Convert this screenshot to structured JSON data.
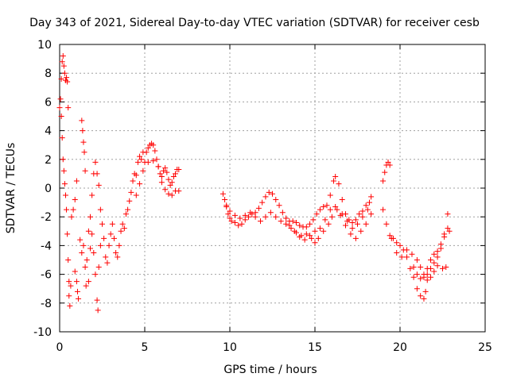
{
  "chart_data": {
    "type": "scatter",
    "title": "Day 343 of 2021, Sidereal Day-to-day VTEC variation (SDTVAR) for receiver cesb",
    "xlabel": "GPS time / hours",
    "ylabel": "SDTVAR / TECUs",
    "xlim": [
      0,
      25
    ],
    "ylim": [
      -10,
      10
    ],
    "xticks": [
      0,
      5,
      10,
      15,
      20,
      25
    ],
    "yticks": [
      -10,
      -8,
      -6,
      -4,
      -2,
      0,
      2,
      4,
      6,
      8,
      10
    ],
    "grid": true,
    "marker": "+",
    "series": [
      {
        "name": "SDTVAR",
        "color": "#ff0000",
        "points": [
          [
            0.0,
            5.6
          ],
          [
            0.05,
            6.2
          ],
          [
            0.1,
            7.6
          ],
          [
            0.15,
            8.8
          ],
          [
            0.2,
            9.2
          ],
          [
            0.25,
            8.5
          ],
          [
            0.3,
            8.0
          ],
          [
            0.35,
            7.5
          ],
          [
            0.4,
            7.7
          ],
          [
            0.45,
            7.4
          ],
          [
            0.5,
            5.6
          ],
          [
            0.1,
            5.0
          ],
          [
            0.15,
            3.5
          ],
          [
            0.2,
            2.0
          ],
          [
            0.25,
            1.2
          ],
          [
            0.3,
            0.3
          ],
          [
            0.35,
            -0.5
          ],
          [
            0.4,
            -1.5
          ],
          [
            0.45,
            -3.2
          ],
          [
            0.5,
            -5.0
          ],
          [
            0.55,
            -6.5
          ],
          [
            0.6,
            -8.2
          ],
          [
            0.55,
            -7.5
          ],
          [
            0.65,
            -6.8
          ],
          [
            0.7,
            -2.0
          ],
          [
            0.8,
            -1.5
          ],
          [
            0.9,
            -0.8
          ],
          [
            1.0,
            0.5
          ],
          [
            0.9,
            -5.8
          ],
          [
            1.0,
            -6.5
          ],
          [
            1.05,
            -7.2
          ],
          [
            1.1,
            -7.7
          ],
          [
            1.3,
            4.7
          ],
          [
            1.35,
            4.0
          ],
          [
            1.4,
            3.2
          ],
          [
            1.45,
            2.5
          ],
          [
            1.5,
            1.2
          ],
          [
            1.2,
            -3.6
          ],
          [
            1.3,
            -4.5
          ],
          [
            1.4,
            -4.0
          ],
          [
            1.5,
            -5.5
          ],
          [
            1.55,
            -6.8
          ],
          [
            1.6,
            -5.0
          ],
          [
            1.7,
            -3.0
          ],
          [
            1.8,
            -2.0
          ],
          [
            1.9,
            -0.5
          ],
          [
            2.0,
            1.0
          ],
          [
            2.1,
            1.8
          ],
          [
            2.2,
            1.0
          ],
          [
            2.3,
            0.2
          ],
          [
            2.4,
            -1.5
          ],
          [
            1.7,
            -6.5
          ],
          [
            1.8,
            -4.2
          ],
          [
            1.9,
            -3.2
          ],
          [
            2.0,
            -4.5
          ],
          [
            2.1,
            -6.0
          ],
          [
            2.2,
            -7.8
          ],
          [
            2.25,
            -8.5
          ],
          [
            2.3,
            -5.5
          ],
          [
            2.4,
            -4.0
          ],
          [
            2.5,
            -2.5
          ],
          [
            2.6,
            -3.5
          ],
          [
            2.7,
            -4.8
          ],
          [
            2.8,
            -5.2
          ],
          [
            2.9,
            -4.0
          ],
          [
            3.0,
            -3.2
          ],
          [
            3.1,
            -2.5
          ],
          [
            3.2,
            -3.5
          ],
          [
            3.3,
            -4.5
          ],
          [
            3.4,
            -4.8
          ],
          [
            3.5,
            -4.0
          ],
          [
            3.6,
            -3.0
          ],
          [
            3.7,
            -2.5
          ],
          [
            3.8,
            -2.8
          ],
          [
            3.9,
            -1.8
          ],
          [
            4.0,
            -1.5
          ],
          [
            4.1,
            -0.9
          ],
          [
            4.2,
            -0.3
          ],
          [
            4.3,
            0.5
          ],
          [
            4.4,
            1.0
          ],
          [
            4.5,
            0.9
          ],
          [
            4.6,
            1.8
          ],
          [
            4.7,
            2.2
          ],
          [
            4.8,
            2.0
          ],
          [
            4.9,
            2.5
          ],
          [
            5.0,
            1.8
          ],
          [
            5.1,
            2.5
          ],
          [
            5.2,
            2.8
          ],
          [
            5.3,
            3.0
          ],
          [
            5.4,
            3.1
          ],
          [
            5.5,
            3.0
          ],
          [
            5.6,
            2.6
          ],
          [
            5.7,
            2.0
          ],
          [
            5.8,
            1.5
          ],
          [
            5.9,
            1.0
          ],
          [
            6.0,
            0.8
          ],
          [
            6.1,
            1.2
          ],
          [
            6.2,
            1.4
          ],
          [
            6.3,
            1.1
          ],
          [
            6.4,
            0.6
          ],
          [
            6.5,
            0.2
          ],
          [
            6.6,
            0.4
          ],
          [
            6.7,
            0.8
          ],
          [
            6.8,
            1.0
          ],
          [
            6.9,
            1.3
          ],
          [
            7.0,
            1.3
          ],
          [
            4.5,
            -0.5
          ],
          [
            4.7,
            0.3
          ],
          [
            4.9,
            1.2
          ],
          [
            5.2,
            1.8
          ],
          [
            5.5,
            1.9
          ],
          [
            5.8,
            1.5
          ],
          [
            6.0,
            0.4
          ],
          [
            6.2,
            -0.1
          ],
          [
            6.4,
            -0.4
          ],
          [
            6.6,
            -0.5
          ],
          [
            6.8,
            -0.2
          ],
          [
            7.0,
            -0.2
          ],
          [
            9.6,
            -0.4
          ],
          [
            9.7,
            -0.8
          ],
          [
            9.8,
            -1.3
          ],
          [
            9.9,
            -1.8
          ],
          [
            10.0,
            -2.1
          ],
          [
            10.1,
            -2.3
          ],
          [
            10.3,
            -2.4
          ],
          [
            10.5,
            -2.6
          ],
          [
            10.7,
            -2.5
          ],
          [
            10.9,
            -2.2
          ],
          [
            11.1,
            -2.0
          ],
          [
            11.3,
            -1.8
          ],
          [
            11.5,
            -1.7
          ],
          [
            11.7,
            -1.4
          ],
          [
            11.9,
            -1.0
          ],
          [
            12.1,
            -0.6
          ],
          [
            12.3,
            -0.3
          ],
          [
            12.5,
            -0.4
          ],
          [
            12.7,
            -0.8
          ],
          [
            12.9,
            -1.2
          ],
          [
            13.1,
            -1.7
          ],
          [
            13.3,
            -2.1
          ],
          [
            13.5,
            -2.3
          ],
          [
            13.7,
            -2.3
          ],
          [
            13.9,
            -2.4
          ],
          [
            14.1,
            -2.6
          ],
          [
            14.3,
            -2.7
          ],
          [
            14.5,
            -2.7
          ],
          [
            14.7,
            -2.5
          ],
          [
            14.9,
            -2.2
          ],
          [
            15.1,
            -1.8
          ],
          [
            15.3,
            -1.5
          ],
          [
            15.5,
            -1.3
          ],
          [
            15.7,
            -1.2
          ],
          [
            15.9,
            -0.5
          ],
          [
            16.1,
            0.5
          ],
          [
            16.2,
            0.8
          ],
          [
            16.4,
            0.3
          ],
          [
            16.6,
            -0.8
          ],
          [
            16.8,
            -1.8
          ],
          [
            17.0,
            -2.2
          ],
          [
            17.2,
            -2.4
          ],
          [
            17.4,
            -2.2
          ],
          [
            17.6,
            -1.8
          ],
          [
            17.8,
            -1.6
          ],
          [
            18.0,
            -1.2
          ],
          [
            18.2,
            -1.0
          ],
          [
            18.3,
            -0.6
          ],
          [
            9.8,
            -1.2
          ],
          [
            10.0,
            -1.6
          ],
          [
            10.3,
            -1.9
          ],
          [
            10.6,
            -2.1
          ],
          [
            10.9,
            -1.9
          ],
          [
            11.2,
            -1.7
          ],
          [
            11.5,
            -2.0
          ],
          [
            11.8,
            -2.3
          ],
          [
            12.1,
            -2.0
          ],
          [
            12.4,
            -1.7
          ],
          [
            12.7,
            -2.0
          ],
          [
            13.0,
            -2.3
          ],
          [
            13.3,
            -2.5
          ],
          [
            13.6,
            -2.8
          ],
          [
            13.9,
            -3.1
          ],
          [
            14.2,
            -3.3
          ],
          [
            14.5,
            -3.2
          ],
          [
            14.8,
            -3.5
          ],
          [
            15.0,
            -3.8
          ],
          [
            15.2,
            -3.5
          ],
          [
            15.5,
            -3.0
          ],
          [
            15.8,
            -2.5
          ],
          [
            16.0,
            -2.0
          ],
          [
            16.3,
            -1.5
          ],
          [
            16.6,
            -1.8
          ],
          [
            16.9,
            -2.3
          ],
          [
            17.2,
            -2.8
          ],
          [
            17.5,
            -2.5
          ],
          [
            17.8,
            -2.0
          ],
          [
            18.1,
            -1.5
          ],
          [
            13.5,
            -2.6
          ],
          [
            13.8,
            -3.0
          ],
          [
            14.1,
            -3.4
          ],
          [
            14.4,
            -3.6
          ],
          [
            14.7,
            -3.3
          ],
          [
            15.0,
            -3.0
          ],
          [
            15.3,
            -2.8
          ],
          [
            15.6,
            -2.2
          ],
          [
            15.9,
            -1.5
          ],
          [
            16.2,
            -1.3
          ],
          [
            16.5,
            -1.9
          ],
          [
            16.8,
            -2.6
          ],
          [
            17.1,
            -3.2
          ],
          [
            17.4,
            -3.5
          ],
          [
            17.7,
            -3.0
          ],
          [
            18.0,
            -2.5
          ],
          [
            18.3,
            -1.8
          ],
          [
            19.0,
            0.5
          ],
          [
            19.1,
            1.1
          ],
          [
            19.2,
            1.6
          ],
          [
            19.3,
            1.8
          ],
          [
            19.4,
            1.6
          ],
          [
            19.0,
            -1.5
          ],
          [
            19.2,
            -2.5
          ],
          [
            19.4,
            -3.3
          ],
          [
            19.6,
            -3.5
          ],
          [
            19.8,
            -3.8
          ],
          [
            20.0,
            -4.0
          ],
          [
            20.2,
            -4.3
          ],
          [
            20.4,
            -4.8
          ],
          [
            20.6,
            -5.6
          ],
          [
            20.8,
            -6.2
          ],
          [
            21.0,
            -7.0
          ],
          [
            21.2,
            -7.5
          ],
          [
            21.4,
            -7.7
          ],
          [
            21.5,
            -7.2
          ],
          [
            21.6,
            -5.6
          ],
          [
            21.8,
            -5.0
          ],
          [
            22.0,
            -4.6
          ],
          [
            22.2,
            -4.4
          ],
          [
            22.4,
            -3.9
          ],
          [
            22.6,
            -3.4
          ],
          [
            22.8,
            -2.8
          ],
          [
            22.9,
            -3.0
          ],
          [
            19.5,
            -3.5
          ],
          [
            19.8,
            -4.5
          ],
          [
            20.1,
            -4.8
          ],
          [
            20.4,
            -4.3
          ],
          [
            20.7,
            -4.6
          ],
          [
            21.0,
            -5.0
          ],
          [
            21.2,
            -5.5
          ],
          [
            21.4,
            -6.0
          ],
          [
            21.6,
            -6.4
          ],
          [
            21.8,
            -6.2
          ],
          [
            22.0,
            -5.8
          ],
          [
            22.2,
            -5.4
          ],
          [
            22.5,
            -5.6
          ],
          [
            22.7,
            -5.5
          ],
          [
            20.8,
            -5.5
          ],
          [
            21.0,
            -6.0
          ],
          [
            21.2,
            -6.3
          ],
          [
            21.4,
            -6.2
          ],
          [
            21.6,
            -6.0
          ],
          [
            21.8,
            -5.6
          ],
          [
            22.0,
            -5.2
          ],
          [
            22.2,
            -4.8
          ],
          [
            22.4,
            -4.2
          ],
          [
            22.6,
            -3.2
          ],
          [
            22.8,
            -1.8
          ]
        ]
      }
    ]
  }
}
